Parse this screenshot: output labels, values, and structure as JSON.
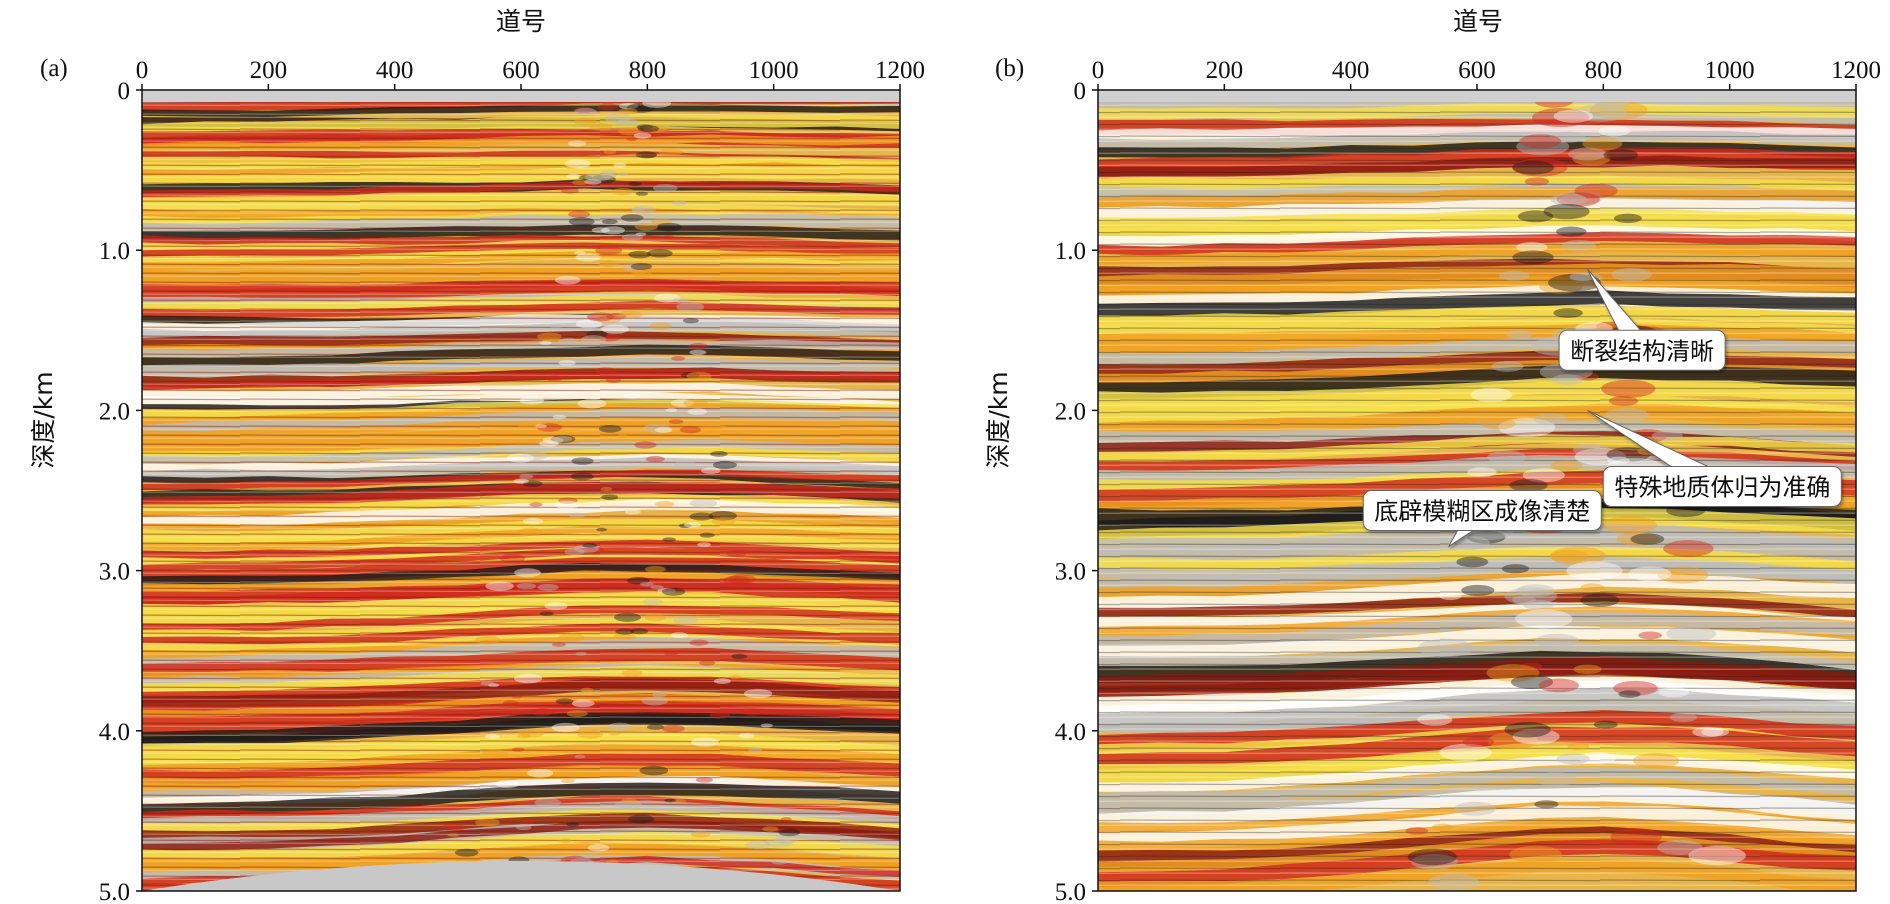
{
  "chart_data": [
    {
      "type": "heatmap",
      "panel_label": "(a)",
      "xlabel": "道号",
      "ylabel": "深度/km",
      "xlim": [
        0,
        1200
      ],
      "ylim": [
        0,
        5.0
      ],
      "y_inverted": true,
      "x_ticks": [
        "0",
        "200",
        "400",
        "600",
        "800",
        "1000",
        "1200"
      ],
      "x_tick_values": [
        0,
        200,
        400,
        600,
        800,
        1000,
        1200
      ],
      "y_ticks": [
        "0",
        "1.0",
        "2.0",
        "3.0",
        "4.0",
        "5.0"
      ],
      "y_tick_values": [
        0,
        1,
        2,
        3,
        4,
        5
      ],
      "colormap": [
        "#1a1a1a",
        "#8b1a10",
        "#d0281c",
        "#f0a020",
        "#f5e04a",
        "#ffffff",
        "#bdbdbd"
      ],
      "annotations": []
    },
    {
      "type": "heatmap",
      "panel_label": "(b)",
      "xlabel": "道号",
      "ylabel": "深度/km",
      "xlim": [
        0,
        1200
      ],
      "ylim": [
        0,
        5.0
      ],
      "y_inverted": true,
      "x_ticks": [
        "0",
        "200",
        "400",
        "600",
        "800",
        "1000",
        "1200"
      ],
      "x_tick_values": [
        0,
        200,
        400,
        600,
        800,
        1000,
        1200
      ],
      "y_ticks": [
        "0",
        "1.0",
        "2.0",
        "3.0",
        "4.0",
        "5.0"
      ],
      "y_tick_values": [
        0,
        1,
        2,
        3,
        4,
        5
      ],
      "colormap": [
        "#1a1a1a",
        "#8b1a10",
        "#d0281c",
        "#f0a020",
        "#f5e04a",
        "#ffffff",
        "#bdbdbd"
      ],
      "annotations": [
        {
          "text": "断裂结构清晰",
          "box": [
            730,
            1.5
          ],
          "point": [
            775,
            1.12
          ]
        },
        {
          "text": "特殊地质体归为准确",
          "box": [
            800,
            2.35
          ],
          "point": [
            775,
            2.0
          ]
        },
        {
          "text": "底辟模糊区成像清楚",
          "box": [
            420,
            2.5
          ],
          "point": [
            555,
            2.85
          ]
        }
      ]
    }
  ]
}
